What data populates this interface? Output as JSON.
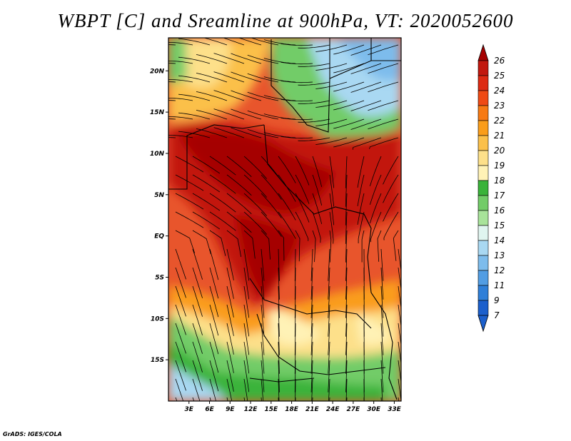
{
  "title": "WBPT [C] and Sreamline at 900hPa, VT: 2020052600",
  "map": {
    "variable": "WBPT [C]",
    "level": "900hPa",
    "valid_time": "2020052600",
    "lon_range": [
      0,
      34
    ],
    "lat_range": [
      -20,
      24
    ],
    "x_ticks": [
      "3E",
      "6E",
      "9E",
      "12E",
      "15E",
      "18E",
      "21E",
      "24E",
      "27E",
      "30E",
      "33E"
    ],
    "y_ticks": [
      "20N",
      "15N",
      "10N",
      "5N",
      "EQ",
      "5S",
      "10S",
      "15S"
    ]
  },
  "colorbar": {
    "levels": [
      "26",
      "25",
      "24",
      "23",
      "22",
      "21",
      "20",
      "19",
      "18",
      "17",
      "16",
      "15",
      "14",
      "13",
      "12",
      "11",
      "9",
      "7"
    ],
    "colors": [
      "#a50000",
      "#c2180e",
      "#dd2a12",
      "#ef4a14",
      "#f77a13",
      "#fa9d1a",
      "#fbc04a",
      "#fde08a",
      "#fff2b6",
      "#3ab33a",
      "#72cc68",
      "#a8e39a",
      "#e0f5f0",
      "#a9d8f2",
      "#7dbcec",
      "#529de3",
      "#2f7fd8",
      "#1b5fcc"
    ],
    "min_color": "#1b5fcc",
    "max_color": "#a50000"
  },
  "credit": "GrADS: IGES/COLA"
}
